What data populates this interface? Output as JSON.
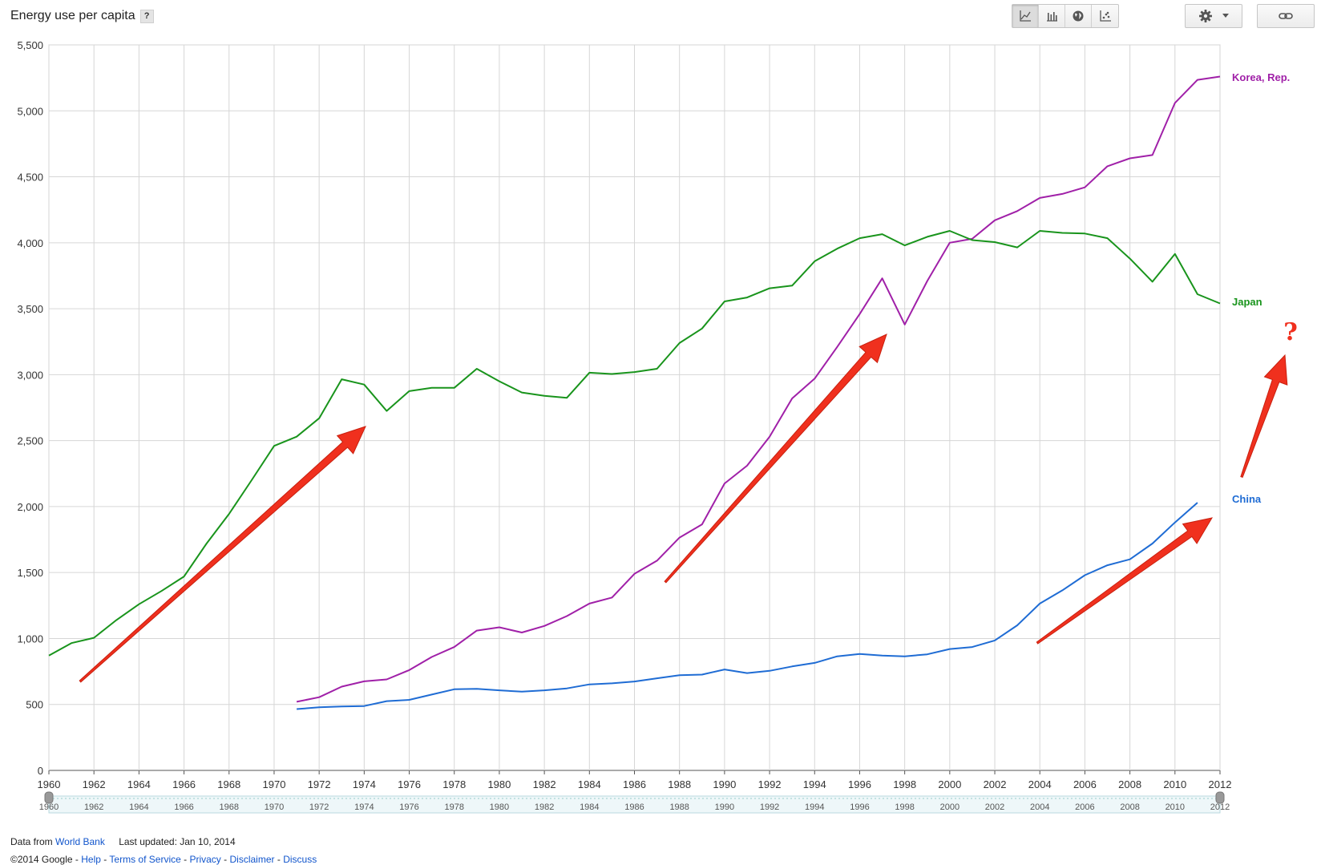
{
  "title": "Energy use per capita",
  "help_label": "?",
  "icons": {
    "line_chart": "line-chart-icon",
    "bar_chart": "bar-chart-icon",
    "map": "globe-icon",
    "scatter": "scatter-icon",
    "settings": "gear-icon",
    "link": "link-icon"
  },
  "colors": {
    "korea": "#a020a8",
    "japan": "#19941c",
    "china": "#1f6cd4",
    "arrow": "#f0301e"
  },
  "chart_data": {
    "type": "line",
    "xlim": [
      1960,
      2012
    ],
    "ylim": [
      0,
      5500
    ],
    "x_ticks": [
      "1960",
      "1962",
      "1964",
      "1966",
      "1968",
      "1970",
      "1972",
      "1974",
      "1976",
      "1978",
      "1980",
      "1982",
      "1984",
      "1986",
      "1988",
      "1990",
      "1992",
      "1994",
      "1996",
      "1998",
      "2000",
      "2002",
      "2004",
      "2006",
      "2008",
      "2010",
      "2012"
    ],
    "y_ticks": [
      "0",
      "500",
      "1,000",
      "1,500",
      "2,000",
      "2,500",
      "3,000",
      "3,500",
      "4,000",
      "4,500",
      "5,000",
      "5,500"
    ],
    "grid": true,
    "legend": "inline at line ends (right)",
    "series": [
      {
        "name": "Korea, Rep.",
        "color_key": "korea",
        "x": [
          1971,
          1972,
          1973,
          1974,
          1975,
          1976,
          1977,
          1978,
          1979,
          1980,
          1981,
          1982,
          1983,
          1984,
          1985,
          1986,
          1987,
          1988,
          1989,
          1990,
          1991,
          1992,
          1993,
          1994,
          1995,
          1996,
          1997,
          1998,
          1999,
          2000,
          2001,
          2002,
          2003,
          2004,
          2005,
          2006,
          2007,
          2008,
          2009,
          2010,
          2011,
          2012
        ],
        "y": [
          520,
          555,
          635,
          675,
          690,
          760,
          860,
          935,
          1060,
          1085,
          1045,
          1095,
          1170,
          1265,
          1310,
          1490,
          1590,
          1765,
          1865,
          2175,
          2310,
          2530,
          2820,
          2970,
          3210,
          3460,
          3730,
          3380,
          3710,
          4000,
          4030,
          4170,
          4240,
          4340,
          4370,
          4420,
          4580,
          4640,
          4665,
          5060,
          5235,
          5260
        ]
      },
      {
        "name": "Japan",
        "color_key": "japan",
        "x": [
          1960,
          1961,
          1962,
          1963,
          1964,
          1965,
          1966,
          1967,
          1968,
          1969,
          1970,
          1971,
          1972,
          1973,
          1974,
          1975,
          1976,
          1977,
          1978,
          1979,
          1980,
          1981,
          1982,
          1983,
          1984,
          1985,
          1986,
          1987,
          1988,
          1989,
          1990,
          1991,
          1992,
          1993,
          1994,
          1995,
          1996,
          1997,
          1998,
          1999,
          2000,
          2001,
          2002,
          2003,
          2004,
          2005,
          2006,
          2007,
          2008,
          2009,
          2010,
          2011,
          2012
        ],
        "y": [
          870,
          965,
          1005,
          1140,
          1260,
          1360,
          1470,
          1720,
          1945,
          2200,
          2460,
          2530,
          2670,
          2965,
          2925,
          2725,
          2875,
          2900,
          2900,
          3045,
          2950,
          2865,
          2840,
          2825,
          3015,
          3005,
          3020,
          3045,
          3240,
          3350,
          3555,
          3585,
          3655,
          3675,
          3860,
          3955,
          4035,
          4065,
          3980,
          4045,
          4090,
          4020,
          4005,
          3965,
          4090,
          4075,
          4070,
          4035,
          3880,
          3705,
          3915,
          3610,
          3540
        ]
      },
      {
        "name": "China",
        "color_key": "china",
        "x": [
          1971,
          1972,
          1973,
          1974,
          1975,
          1976,
          1977,
          1978,
          1979,
          1980,
          1981,
          1982,
          1983,
          1984,
          1985,
          1986,
          1987,
          1988,
          1989,
          1990,
          1991,
          1992,
          1993,
          1994,
          1995,
          1996,
          1997,
          1998,
          1999,
          2000,
          2001,
          2002,
          2003,
          2004,
          2005,
          2006,
          2007,
          2008,
          2009,
          2010,
          2011
        ],
        "y": [
          465,
          478,
          485,
          488,
          525,
          535,
          575,
          615,
          618,
          607,
          597,
          607,
          622,
          652,
          660,
          674,
          698,
          722,
          726,
          765,
          738,
          755,
          788,
          815,
          865,
          883,
          870,
          865,
          880,
          920,
          935,
          985,
          1100,
          1265,
          1365,
          1480,
          1555,
          1600,
          1720,
          1880,
          2030
        ]
      }
    ]
  },
  "annotations": {
    "question_mark": "?"
  },
  "footer": {
    "data_from_prefix": "Data from",
    "source_link": "World Bank",
    "last_updated": "Last updated: Jan 10, 2014",
    "copyright": "©2014 Google",
    "sep": "-",
    "links": [
      "Help",
      "Terms of Service",
      "Privacy",
      "Disclaimer",
      "Discuss"
    ]
  }
}
